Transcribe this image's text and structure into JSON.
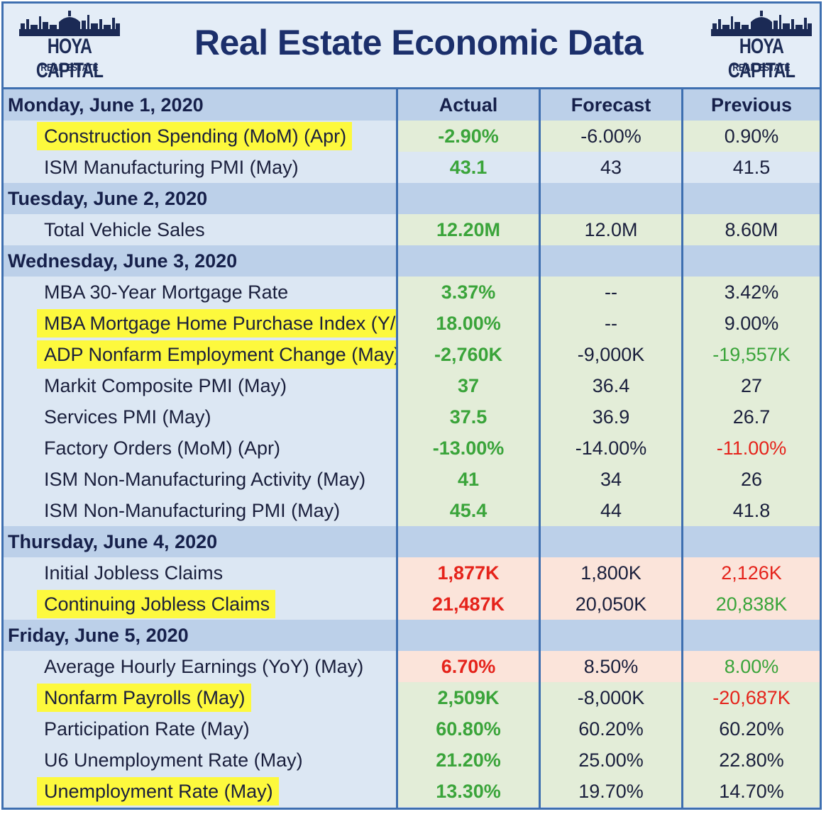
{
  "header": {
    "title": "Real Estate Economic Data",
    "logo_brand": "HOYA CAPITAL",
    "logo_sub": "REAL ESTATE"
  },
  "columns": {
    "actual": "Actual",
    "forecast": "Forecast",
    "previous": "Previous"
  },
  "colors": {
    "frame": "#3e6fb0",
    "day_band": "#bcd0e9",
    "highlight": "#fdf93d",
    "positive": "#3aa43a",
    "negative": "#e5231b",
    "title": "#1b2f6b"
  },
  "rows": [
    {
      "type": "day",
      "label": "Monday, June 1, 2020",
      "actual": "Actual",
      "forecast": "Forecast",
      "previous": "Previous"
    },
    {
      "type": "data",
      "label": "Construction Spending (MoM) (Apr)",
      "highlight": true,
      "actual": "-2.90%",
      "forecast": "-6.00%",
      "previous": "0.90%",
      "bg": "green",
      "actual_color": "green",
      "previous_color": "plain"
    },
    {
      "type": "data",
      "label": "ISM Manufacturing PMI (May)",
      "highlight": false,
      "actual": "43.1",
      "forecast": "43",
      "previous": "41.5",
      "bg": "blue",
      "actual_color": "green",
      "previous_color": "plain"
    },
    {
      "type": "day",
      "label": "Tuesday, June 2, 2020",
      "actual": "",
      "forecast": "",
      "previous": ""
    },
    {
      "type": "data",
      "label": "Total Vehicle Sales",
      "highlight": false,
      "actual": "12.20M",
      "forecast": "12.0M",
      "previous": "8.60M",
      "bg": "green",
      "actual_color": "green",
      "previous_color": "plain"
    },
    {
      "type": "day",
      "label": "Wednesday, June 3, 2020",
      "actual": "",
      "forecast": "",
      "previous": ""
    },
    {
      "type": "data",
      "label": "MBA 30-Year Mortgage Rate",
      "highlight": false,
      "actual": "3.37%",
      "forecast": "--",
      "previous": "3.42%",
      "bg": "green",
      "actual_color": "green",
      "previous_color": "plain"
    },
    {
      "type": "data",
      "label": "MBA Mortgage Home Purchase Index (Y/Y)",
      "highlight": true,
      "actual": "18.00%",
      "forecast": "--",
      "previous": "9.00%",
      "bg": "green",
      "actual_color": "green",
      "previous_color": "plain"
    },
    {
      "type": "data",
      "label": "ADP Nonfarm Employment Change (May)",
      "highlight": true,
      "actual": "-2,760K",
      "forecast": "-9,000K",
      "previous": "-19,557K",
      "bg": "green",
      "actual_color": "green",
      "previous_color": "green"
    },
    {
      "type": "data",
      "label": "Markit Composite PMI (May)",
      "highlight": false,
      "actual": "37",
      "forecast": "36.4",
      "previous": "27",
      "bg": "green",
      "actual_color": "green",
      "previous_color": "plain"
    },
    {
      "type": "data",
      "label": "Services PMI (May)",
      "highlight": false,
      "actual": "37.5",
      "forecast": "36.9",
      "previous": "26.7",
      "bg": "green",
      "actual_color": "green",
      "previous_color": "plain"
    },
    {
      "type": "data",
      "label": "Factory Orders (MoM) (Apr)",
      "highlight": false,
      "actual": "-13.00%",
      "forecast": "-14.00%",
      "previous": "-11.00%",
      "bg": "green",
      "actual_color": "green",
      "previous_color": "red"
    },
    {
      "type": "data",
      "label": "ISM Non-Manufacturing Activity (May)",
      "highlight": false,
      "actual": "41",
      "forecast": "34",
      "previous": "26",
      "bg": "green",
      "actual_color": "green",
      "previous_color": "plain"
    },
    {
      "type": "data",
      "label": "ISM Non-Manufacturing PMI (May)",
      "highlight": false,
      "actual": "45.4",
      "forecast": "44",
      "previous": "41.8",
      "bg": "green",
      "actual_color": "green",
      "previous_color": "plain"
    },
    {
      "type": "day",
      "label": "Thursday, June 4, 2020",
      "actual": "",
      "forecast": "",
      "previous": ""
    },
    {
      "type": "data",
      "label": "Initial Jobless Claims",
      "highlight": false,
      "actual": "1,877K",
      "forecast": "1,800K",
      "previous": "2,126K",
      "bg": "red",
      "actual_color": "red",
      "previous_color": "red"
    },
    {
      "type": "data",
      "label": "Continuing Jobless Claims",
      "highlight": true,
      "actual": "21,487K",
      "forecast": "20,050K",
      "previous": "20,838K",
      "bg": "red",
      "actual_color": "red",
      "previous_color": "green"
    },
    {
      "type": "day",
      "label": "Friday, June 5, 2020",
      "actual": "",
      "forecast": "",
      "previous": ""
    },
    {
      "type": "data",
      "label": "Average Hourly Earnings (YoY) (May)",
      "highlight": false,
      "actual": "6.70%",
      "forecast": "8.50%",
      "previous": "8.00%",
      "bg": "red",
      "actual_color": "red",
      "previous_color": "green"
    },
    {
      "type": "data",
      "label": "Nonfarm Payrolls (May)",
      "highlight": true,
      "actual": "2,509K",
      "forecast": "-8,000K",
      "previous": "-20,687K",
      "bg": "green",
      "actual_color": "green",
      "previous_color": "red"
    },
    {
      "type": "data",
      "label": "Participation Rate (May)",
      "highlight": false,
      "actual": "60.80%",
      "forecast": "60.20%",
      "previous": "60.20%",
      "bg": "green",
      "actual_color": "green",
      "previous_color": "plain"
    },
    {
      "type": "data",
      "label": "U6 Unemployment Rate (May)",
      "highlight": false,
      "actual": "21.20%",
      "forecast": "25.00%",
      "previous": "22.80%",
      "bg": "green",
      "actual_color": "green",
      "previous_color": "plain"
    },
    {
      "type": "data",
      "label": "Unemployment Rate (May)",
      "highlight": true,
      "actual": "13.30%",
      "forecast": "19.70%",
      "previous": "14.70%",
      "bg": "green",
      "actual_color": "green",
      "previous_color": "plain"
    }
  ]
}
